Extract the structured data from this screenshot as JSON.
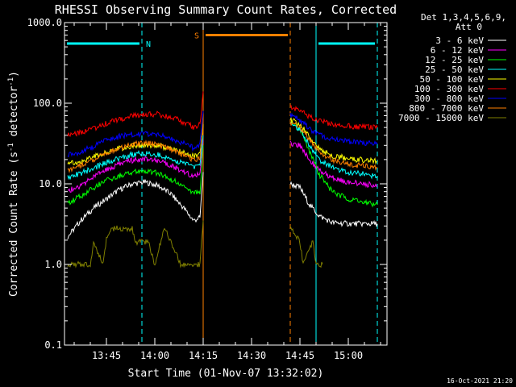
{
  "chart_data": {
    "type": "line",
    "title": "RHESSI Observing Summary Count Rates, Corrected",
    "xlabel": "Start Time (01-Nov-07 13:32:02)",
    "ylabel_main": "Corrected Count Rate (s",
    "ylabel_exp1": "-1",
    "ylabel_mid": " detector",
    "ylabel_exp2": "-1",
    "ylabel_end": ")",
    "yscale": "log",
    "ylim": [
      0.1,
      1000.0
    ],
    "xlim_minutes": [
      "13:32",
      "15:12"
    ],
    "x_ticks": [
      {
        "t": "13:45",
        "label": "13:45"
      },
      {
        "t": "14:00",
        "label": "14:00"
      },
      {
        "t": "14:15",
        "label": "14:15"
      },
      {
        "t": "14:30",
        "label": "14:30"
      },
      {
        "t": "14:45",
        "label": "14:45"
      },
      {
        "t": "15:00",
        "label": "15:00"
      }
    ],
    "y_ticks": [
      {
        "v": 0.1,
        "label": "0.1"
      },
      {
        "v": 1.0,
        "label": "1.0"
      },
      {
        "v": 10.0,
        "label": "10.0"
      },
      {
        "v": 100.0,
        "label": "100.0"
      },
      {
        "v": 1000.0,
        "label": "1000.0"
      }
    ],
    "legend_header": [
      "Det 1,3,4,5,6,9,",
      "Att 0"
    ],
    "legend_placement": "right",
    "series": [
      {
        "name": "3 - 6 keV",
        "color": "#ffffff",
        "segments": [
          [
            [
              "13:33",
              2.2
            ],
            [
              "13:37",
              3.5
            ],
            [
              "13:41",
              5.0
            ],
            [
              "13:45",
              6.5
            ],
            [
              "13:49",
              8.5
            ],
            [
              "13:53",
              10.0
            ],
            [
              "13:57",
              10.5
            ],
            [
              "14:01",
              9.5
            ],
            [
              "14:05",
              7.5
            ],
            [
              "14:09",
              5.0
            ],
            [
              "14:12",
              3.5
            ],
            [
              "14:14",
              3.8
            ],
            [
              "14:15",
              14
            ]
          ],
          [
            [
              "14:42",
              10
            ],
            [
              "14:45",
              9.0
            ],
            [
              "14:48",
              5.5
            ],
            [
              "14:51",
              4.0
            ],
            [
              "14:55",
              3.3
            ],
            [
              "15:00",
              3.2
            ],
            [
              "15:09",
              3.2
            ]
          ]
        ]
      },
      {
        "name": "6 - 12 keV",
        "color": "#ff00ff",
        "segments": [
          [
            [
              "13:33",
              8.2
            ],
            [
              "13:37",
              9.5
            ],
            [
              "13:41",
              12.0
            ],
            [
              "13:45",
              15.0
            ],
            [
              "13:49",
              17.5
            ],
            [
              "13:53",
              19.5
            ],
            [
              "13:57",
              20.5
            ],
            [
              "14:01",
              19.5
            ],
            [
              "14:05",
              17.0
            ],
            [
              "14:09",
              14.0
            ],
            [
              "14:12",
              12.5
            ],
            [
              "14:14",
              13.5
            ],
            [
              "14:15",
              35
            ]
          ],
          [
            [
              "14:42",
              32
            ],
            [
              "14:45",
              30
            ],
            [
              "14:48",
              20
            ],
            [
              "14:51",
              14.5
            ],
            [
              "14:55",
              12.0
            ],
            [
              "15:00",
              10.5
            ],
            [
              "15:09",
              9.5
            ]
          ]
        ]
      },
      {
        "name": "12 - 25 keV",
        "color": "#00ff00",
        "segments": [
          [
            [
              "13:33",
              5.8
            ],
            [
              "13:37",
              7.0
            ],
            [
              "13:41",
              9.0
            ],
            [
              "13:45",
              11.0
            ],
            [
              "13:49",
              12.5
            ],
            [
              "13:53",
              14.0
            ],
            [
              "13:57",
              14.5
            ],
            [
              "14:01",
              13.5
            ],
            [
              "14:05",
              11.5
            ],
            [
              "14:09",
              9.0
            ],
            [
              "14:12",
              7.5
            ],
            [
              "14:14",
              8.0
            ],
            [
              "14:15",
              30
            ]
          ],
          [
            [
              "14:42",
              60
            ],
            [
              "14:45",
              48
            ],
            [
              "14:48",
              25
            ],
            [
              "14:51",
              13.0
            ],
            [
              "14:55",
              8.0
            ],
            [
              "15:00",
              6.5
            ],
            [
              "15:09",
              5.5
            ]
          ]
        ]
      },
      {
        "name": "25 - 50 keV",
        "color": "#00ffff",
        "segments": [
          [
            [
              "13:33",
              12.0
            ],
            [
              "13:37",
              13.5
            ],
            [
              "13:41",
              15.5
            ],
            [
              "13:45",
              18.5
            ],
            [
              "13:49",
              21.0
            ],
            [
              "13:53",
              23.0
            ],
            [
              "13:57",
              24.0
            ],
            [
              "14:01",
              23.0
            ],
            [
              "14:05",
              20.5
            ],
            [
              "14:09",
              18.0
            ],
            [
              "14:12",
              16.0
            ],
            [
              "14:14",
              17.5
            ],
            [
              "14:15",
              40
            ]
          ],
          [
            [
              "14:42",
              55
            ],
            [
              "14:45",
              48
            ],
            [
              "14:48",
              30
            ],
            [
              "14:51",
              20.0
            ],
            [
              "14:55",
              16.0
            ],
            [
              "15:00",
              14.0
            ],
            [
              "15:09",
              12.5
            ]
          ]
        ]
      },
      {
        "name": "50 - 100 keV",
        "color": "#ffff00",
        "segments": [
          [
            [
              "13:33",
              17.5
            ],
            [
              "13:37",
              19.0
            ],
            [
              "13:41",
              21.5
            ],
            [
              "13:45",
              25.0
            ],
            [
              "13:49",
              27.5
            ],
            [
              "13:53",
              29.5
            ],
            [
              "13:57",
              30.5
            ],
            [
              "14:01",
              30.0
            ],
            [
              "14:05",
              27.0
            ],
            [
              "14:09",
              24.5
            ],
            [
              "14:12",
              22.0
            ],
            [
              "14:14",
              23.0
            ],
            [
              "14:15",
              55
            ]
          ],
          [
            [
              "14:42",
              62
            ],
            [
              "14:45",
              55
            ],
            [
              "14:48",
              38
            ],
            [
              "14:51",
              27.0
            ],
            [
              "14:55",
              22.5
            ],
            [
              "15:00",
              20.5
            ],
            [
              "15:09",
              19.0
            ]
          ]
        ]
      },
      {
        "name": "100 - 300 keV",
        "color": "#ff0000",
        "segments": [
          [
            [
              "13:33",
              40
            ],
            [
              "13:37",
              43
            ],
            [
              "13:41",
              49
            ],
            [
              "13:45",
              56
            ],
            [
              "13:49",
              63
            ],
            [
              "13:53",
              69
            ],
            [
              "13:57",
              73
            ],
            [
              "14:01",
              73
            ],
            [
              "14:05",
              67
            ],
            [
              "14:09",
              58
            ],
            [
              "14:12",
              50
            ],
            [
              "14:14",
              55
            ],
            [
              "14:15",
              140
            ]
          ],
          [
            [
              "14:42",
              90
            ],
            [
              "14:45",
              82
            ],
            [
              "14:48",
              68
            ],
            [
              "14:51",
              60
            ],
            [
              "14:55",
              55
            ],
            [
              "15:00",
              52
            ],
            [
              "15:09",
              50
            ]
          ]
        ]
      },
      {
        "name": "300 - 800 keV",
        "color": "#0000ff",
        "segments": [
          [
            [
              "13:33",
              22.5
            ],
            [
              "13:37",
              25.0
            ],
            [
              "13:41",
              29.0
            ],
            [
              "13:45",
              34.5
            ],
            [
              "13:49",
              38.5
            ],
            [
              "13:53",
              41.0
            ],
            [
              "13:57",
              42.0
            ],
            [
              "14:01",
              40.5
            ],
            [
              "14:05",
              36.5
            ],
            [
              "14:09",
              31.5
            ],
            [
              "14:12",
              28.0
            ],
            [
              "14:14",
              30.0
            ],
            [
              "14:15",
              80
            ]
          ],
          [
            [
              "14:42",
              72
            ],
            [
              "14:45",
              62
            ],
            [
              "14:48",
              48
            ],
            [
              "14:51",
              40.0
            ],
            [
              "14:55",
              36.0
            ],
            [
              "15:00",
              33.5
            ],
            [
              "15:09",
              31.0
            ]
          ]
        ]
      },
      {
        "name": "800 - 7000 keV",
        "color": "#ff8000",
        "segments": [
          [
            [
              "13:33",
              15.0
            ],
            [
              "13:37",
              17.0
            ],
            [
              "13:41",
              20.0
            ],
            [
              "13:45",
              24.0
            ],
            [
              "13:49",
              28.0
            ],
            [
              "13:53",
              31.0
            ],
            [
              "13:57",
              32.0
            ],
            [
              "14:01",
              30.5
            ],
            [
              "14:05",
              27.0
            ],
            [
              "14:09",
              22.5
            ],
            [
              "14:12",
              19.5
            ],
            [
              "14:14",
              21.0
            ],
            [
              "14:15",
              60
            ]
          ],
          [
            [
              "14:42",
              58
            ],
            [
              "14:45",
              50
            ],
            [
              "14:48",
              35
            ],
            [
              "14:51",
              25.0
            ],
            [
              "14:55",
              20.0
            ],
            [
              "15:00",
              17.5
            ],
            [
              "15:09",
              16.0
            ]
          ]
        ]
      },
      {
        "name": "7000 - 15000 keV",
        "color": "#808000",
        "segments": [
          [
            [
              "13:33",
              1.0
            ],
            [
              "13:40",
              1.0
            ],
            [
              "13:41",
              1.9
            ],
            [
              "13:44",
              1.0
            ],
            [
              "13:45",
              2.1
            ],
            [
              "13:47",
              2.8
            ],
            [
              "13:53",
              2.8
            ],
            [
              "13:54",
              1.9
            ],
            [
              "13:58",
              1.9
            ],
            [
              "14:00",
              1.0
            ],
            [
              "14:03",
              2.8
            ],
            [
              "14:05",
              1.9
            ],
            [
              "14:08",
              1.0
            ],
            [
              "14:14",
              1.0
            ],
            [
              "14:15",
              3.5
            ]
          ],
          [
            [
              "14:42",
              2.8
            ],
            [
              "14:45",
              1.9
            ],
            [
              "14:46",
              1.0
            ],
            [
              "14:49",
              1.9
            ],
            [
              "14:50",
              1.0
            ],
            [
              "14:52",
              1.0
            ]
          ]
        ]
      }
    ],
    "annotations": [
      {
        "type": "bar",
        "label": "N",
        "color": "#00ffff",
        "x_from": "13:32",
        "x_to": "13:56",
        "y": 550
      },
      {
        "type": "bar",
        "label": "",
        "color": "#00ffff",
        "x_from": "14:50",
        "x_to": "15:09",
        "y": 550
      },
      {
        "type": "bar",
        "label": "S",
        "color": "#ff8000",
        "x_from": "14:15",
        "x_to": "14:42",
        "y": 700
      }
    ],
    "vlines": [
      {
        "t": "13:32",
        "color": "#00ffff",
        "style": "solid"
      },
      {
        "t": "13:56",
        "color": "#00ffff",
        "style": "dashed"
      },
      {
        "t": "14:50",
        "color": "#00ffff",
        "style": "solid"
      },
      {
        "t": "15:09",
        "color": "#00ffff",
        "style": "dashed"
      },
      {
        "t": "14:15",
        "color": "#ff8000",
        "style": "solid"
      },
      {
        "t": "14:42",
        "color": "#ff8000",
        "style": "dashed"
      }
    ]
  },
  "footer_timestamp": "16-Oct-2021 21:20"
}
